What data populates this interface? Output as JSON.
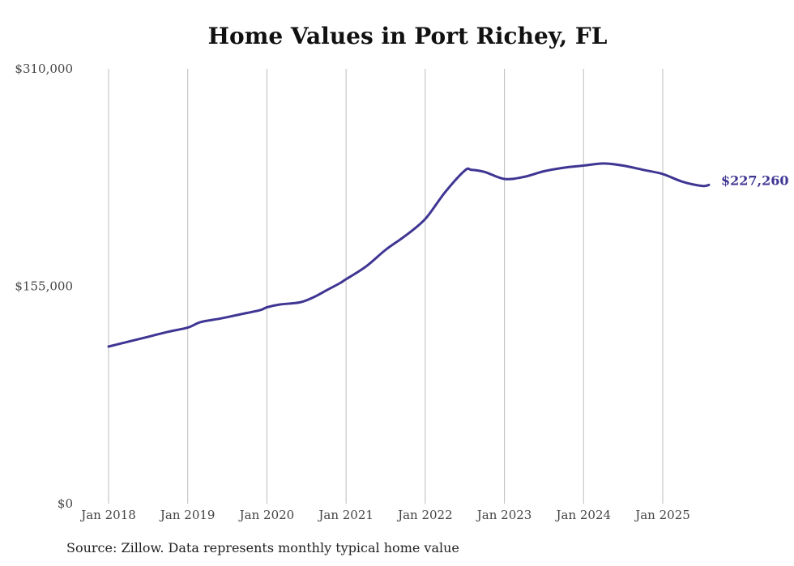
{
  "chart_data": {
    "type": "line",
    "title": "Home Values in Port Richey, FL",
    "xlabel": "",
    "ylabel": "",
    "ylim": [
      0,
      310000
    ],
    "y_ticks": [
      "$0",
      "$155,000",
      "$310,000"
    ],
    "y_tick_values": [
      0,
      155000,
      310000
    ],
    "x_ticks": [
      "Jan 2018",
      "Jan 2019",
      "Jan 2020",
      "Jan 2021",
      "Jan 2022",
      "Jan 2023",
      "Jan 2024",
      "Jan 2025"
    ],
    "x_tick_dates": [
      "2018-01",
      "2019-01",
      "2020-01",
      "2021-01",
      "2022-01",
      "2023-01",
      "2024-01",
      "2025-01"
    ],
    "grid": "vertical",
    "line_color": "#3f3593",
    "end_label": "$227,260",
    "series": [
      {
        "x": [
          "2018-01",
          "2018-04",
          "2018-07",
          "2018-10",
          "2019-01",
          "2019-03",
          "2019-06",
          "2019-09",
          "2019-12",
          "2020-01",
          "2020-03",
          "2020-06",
          "2020-08",
          "2020-10",
          "2020-12",
          "2021-01",
          "2021-04",
          "2021-07",
          "2021-10",
          "2022-01",
          "2022-04",
          "2022-07",
          "2022-08",
          "2022-10",
          "2023-01",
          "2023-04",
          "2023-07",
          "2023-10",
          "2024-01",
          "2024-04",
          "2024-07",
          "2024-10",
          "2025-01",
          "2025-04",
          "2025-07",
          "2025-08"
        ],
        "values": [
          112000,
          115500,
          119000,
          122500,
          125500,
          129500,
          132000,
          135000,
          138000,
          140000,
          142000,
          143500,
          147000,
          152000,
          157000,
          160000,
          169000,
          181000,
          191000,
          203000,
          222000,
          237500,
          238000,
          236500,
          231500,
          233000,
          237000,
          239500,
          241000,
          242500,
          241000,
          238000,
          235000,
          229500,
          226500,
          227260
        ]
      }
    ],
    "source": "Source: Zillow. Data represents monthly typical home value"
  }
}
